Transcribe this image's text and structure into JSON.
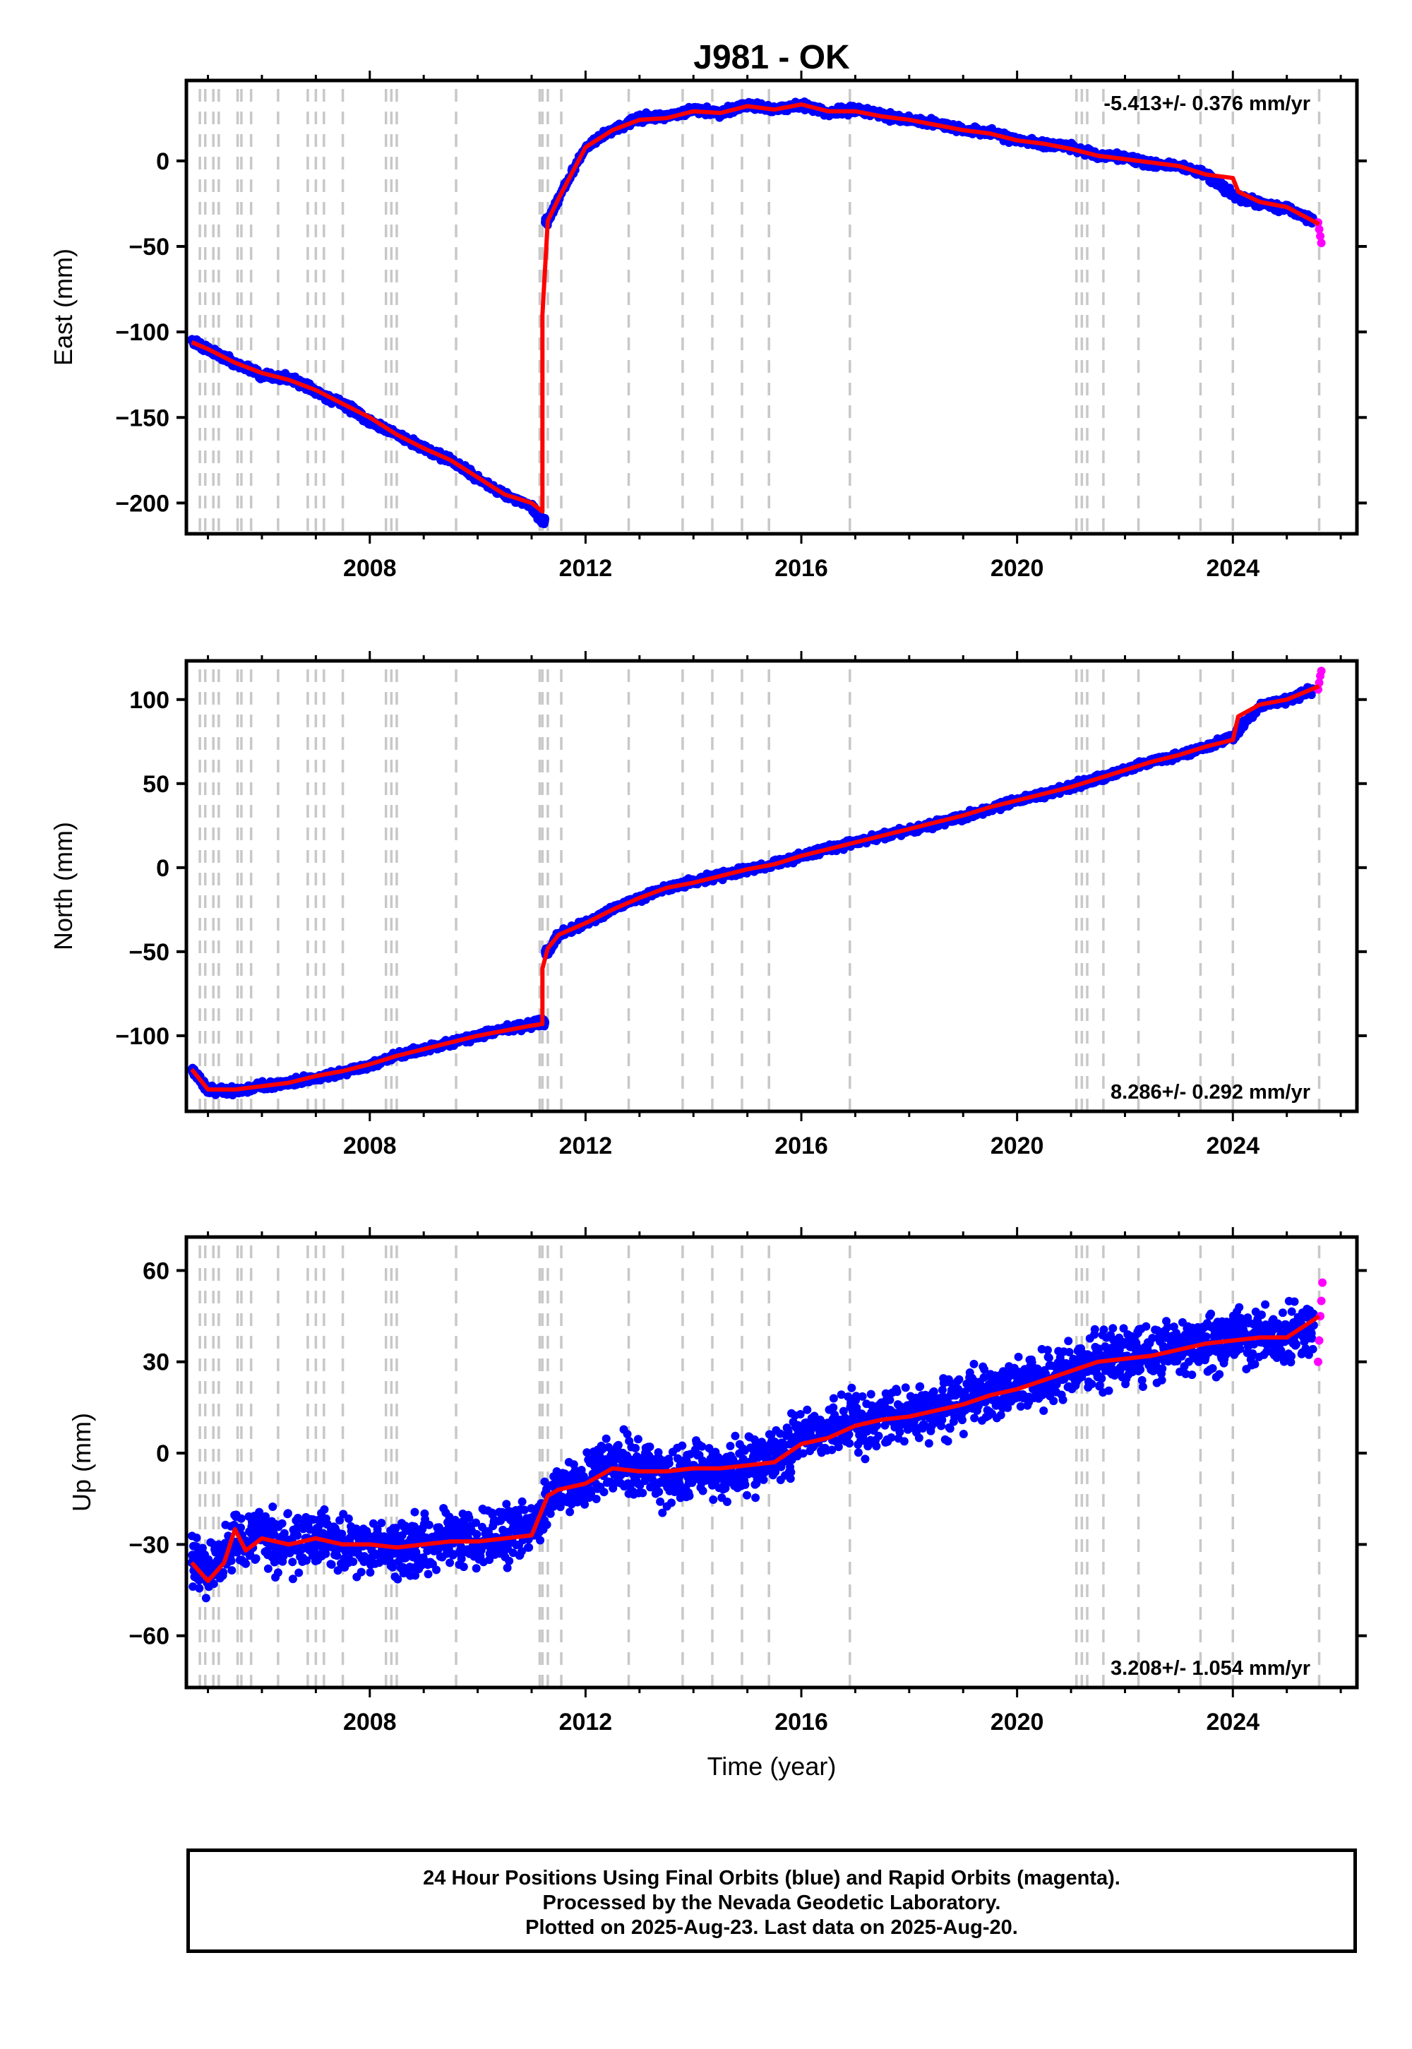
{
  "chart_data": [
    {
      "type": "scatter",
      "title": "J981 - OK",
      "ylabel": "East (mm)",
      "xlim": [
        2004.6,
        2026.3
      ],
      "ylim": [
        -218,
        47
      ],
      "yticks": [
        -200,
        -150,
        -100,
        -50,
        0
      ],
      "xticks": [
        2008,
        2012,
        2016,
        2020,
        2024
      ],
      "rate_label": "-5.413+/- 0.376 mm/yr",
      "rate_position": "top-right",
      "grid": false,
      "series": [
        {
          "name": "Final Orbits",
          "color": "#0000ff",
          "kind": "points",
          "x": [
            2004.7,
            2005.0,
            2005.5,
            2006.0,
            2006.5,
            2007.0,
            2007.5,
            2008.0,
            2008.5,
            2009.0,
            2009.5,
            2010.0,
            2010.5,
            2011.0,
            2011.2,
            2011.3,
            2011.5,
            2012.0,
            2012.5,
            2013.0,
            2013.5,
            2014.0,
            2014.5,
            2015.0,
            2015.5,
            2016.0,
            2016.5,
            2017.0,
            2017.5,
            2018.0,
            2018.5,
            2019.0,
            2019.5,
            2020.0,
            2020.5,
            2021.0,
            2021.5,
            2022.0,
            2022.5,
            2023.0,
            2023.5,
            2024.0,
            2024.5,
            2025.0,
            2025.5
          ],
          "y": [
            -105,
            -110,
            -118,
            -125,
            -127,
            -135,
            -142,
            -152,
            -160,
            -168,
            -175,
            -186,
            -195,
            -202,
            -210,
            -35,
            -22,
            8,
            18,
            25,
            26,
            30,
            28,
            33,
            30,
            33,
            28,
            30,
            27,
            24,
            22,
            18,
            17,
            12,
            10,
            8,
            3,
            2,
            -2,
            -3,
            -8,
            -20,
            -25,
            -28,
            -35
          ]
        },
        {
          "name": "Rapid Orbits",
          "color": "#ff00ff",
          "kind": "points",
          "x": [
            2025.58,
            2025.6,
            2025.62,
            2025.64
          ],
          "y": [
            -36,
            -40,
            -44,
            -48
          ]
        },
        {
          "name": "Model",
          "color": "#ff0000",
          "kind": "line",
          "x": [
            2004.7,
            2005.0,
            2005.5,
            2006.0,
            2006.5,
            2007.0,
            2007.5,
            2008.0,
            2008.5,
            2009.0,
            2009.5,
            2010.0,
            2010.5,
            2011.0,
            2011.2,
            2011.2,
            2011.3,
            2011.5,
            2012.0,
            2012.5,
            2013.0,
            2013.5,
            2014.0,
            2014.5,
            2015.0,
            2015.5,
            2016.0,
            2016.5,
            2017.0,
            2017.5,
            2018.0,
            2018.5,
            2019.0,
            2019.5,
            2020.0,
            2020.5,
            2021.0,
            2021.5,
            2022.0,
            2022.5,
            2023.0,
            2023.5,
            2024.0,
            2024.1,
            2024.5,
            2025.0,
            2025.6
          ],
          "y": [
            -106,
            -110,
            -118,
            -124,
            -128,
            -134,
            -142,
            -150,
            -160,
            -168,
            -175,
            -185,
            -195,
            -200,
            -205,
            -90,
            -35,
            -22,
            8,
            18,
            24,
            25,
            29,
            28,
            32,
            30,
            33,
            29,
            29,
            26,
            24,
            21,
            18,
            16,
            12,
            10,
            7,
            3,
            1,
            -1,
            -3,
            -8,
            -10,
            -18,
            -24,
            -27,
            -37
          ]
        }
      ]
    },
    {
      "type": "scatter",
      "ylabel": "North (mm)",
      "xlim": [
        2004.6,
        2026.3
      ],
      "ylim": [
        -145,
        123
      ],
      "yticks": [
        -100,
        -50,
        0,
        50,
        100
      ],
      "xticks": [
        2008,
        2012,
        2016,
        2020,
        2024
      ],
      "rate_label": "8.286+/- 0.292 mm/yr",
      "rate_position": "bottom-right",
      "grid": false,
      "series": [
        {
          "name": "Final Orbits",
          "color": "#0000ff",
          "kind": "points",
          "x": [
            2004.7,
            2005.0,
            2005.5,
            2006.0,
            2006.5,
            2007.0,
            2007.5,
            2008.0,
            2008.5,
            2009.0,
            2009.5,
            2010.0,
            2010.5,
            2011.0,
            2011.2,
            2011.3,
            2011.5,
            2012.0,
            2012.5,
            2013.0,
            2013.5,
            2014.0,
            2014.5,
            2015.0,
            2015.5,
            2016.0,
            2016.5,
            2017.0,
            2017.5,
            2018.0,
            2018.5,
            2019.0,
            2019.5,
            2020.0,
            2020.5,
            2021.0,
            2021.5,
            2022.0,
            2022.5,
            2023.0,
            2023.5,
            2024.0,
            2024.5,
            2025.0,
            2025.5
          ],
          "y": [
            -120,
            -132,
            -133,
            -130,
            -128,
            -125,
            -122,
            -118,
            -112,
            -108,
            -104,
            -100,
            -96,
            -93,
            -92,
            -50,
            -40,
            -33,
            -25,
            -18,
            -12,
            -8,
            -5,
            -1,
            2,
            7,
            11,
            15,
            19,
            22,
            26,
            30,
            35,
            40,
            44,
            48,
            53,
            58,
            63,
            67,
            72,
            78,
            96,
            100,
            106
          ]
        },
        {
          "name": "Rapid Orbits",
          "color": "#ff00ff",
          "kind": "points",
          "x": [
            2025.58,
            2025.6,
            2025.62,
            2025.64
          ],
          "y": [
            106,
            110,
            114,
            117
          ]
        },
        {
          "name": "Model",
          "color": "#ff0000",
          "kind": "line",
          "x": [
            2004.7,
            2005.0,
            2005.5,
            2006.0,
            2006.5,
            2007.0,
            2007.5,
            2008.0,
            2008.5,
            2009.0,
            2009.5,
            2010.0,
            2010.5,
            2011.0,
            2011.2,
            2011.2,
            2011.3,
            2011.5,
            2012.0,
            2012.5,
            2013.0,
            2013.5,
            2014.0,
            2014.5,
            2015.0,
            2015.5,
            2016.0,
            2016.5,
            2017.0,
            2017.5,
            2018.0,
            2018.5,
            2019.0,
            2019.5,
            2020.0,
            2020.5,
            2021.0,
            2021.5,
            2022.0,
            2022.5,
            2023.0,
            2023.5,
            2024.0,
            2024.1,
            2024.5,
            2025.0,
            2025.6
          ],
          "y": [
            -120,
            -132,
            -132,
            -130,
            -128,
            -124,
            -121,
            -117,
            -112,
            -108,
            -104,
            -100,
            -97,
            -94,
            -93,
            -60,
            -48,
            -40,
            -33,
            -25,
            -18,
            -12,
            -9,
            -5,
            -1,
            2,
            7,
            11,
            15,
            19,
            23,
            27,
            31,
            36,
            40,
            44,
            48,
            53,
            58,
            63,
            67,
            72,
            76,
            90,
            97,
            100,
            108
          ]
        }
      ]
    },
    {
      "type": "scatter",
      "ylabel": "Up (mm)",
      "xlabel": "Time (year)",
      "xlim": [
        2004.6,
        2026.3
      ],
      "ylim": [
        -77,
        71
      ],
      "yticks": [
        -60,
        -30,
        0,
        30,
        60
      ],
      "xticks": [
        2008,
        2012,
        2016,
        2020,
        2024
      ],
      "rate_label": "3.208+/- 1.054 mm/yr",
      "rate_position": "bottom-right",
      "grid": false,
      "series": [
        {
          "name": "Final Orbits",
          "color": "#0000ff",
          "kind": "points",
          "x": [
            2004.7,
            2005.0,
            2005.5,
            2006.0,
            2006.5,
            2007.0,
            2007.5,
            2008.0,
            2008.5,
            2009.0,
            2009.5,
            2010.0,
            2010.5,
            2011.0,
            2011.5,
            2012.0,
            2012.5,
            2013.0,
            2013.5,
            2014.0,
            2014.5,
            2015.0,
            2015.5,
            2016.0,
            2016.5,
            2017.0,
            2017.5,
            2018.0,
            2018.5,
            2019.0,
            2019.5,
            2020.0,
            2020.5,
            2021.0,
            2021.5,
            2022.0,
            2022.5,
            2023.0,
            2023.5,
            2024.0,
            2024.5,
            2025.0,
            2025.5
          ],
          "y": [
            -36,
            -40,
            -30,
            -28,
            -30,
            -28,
            -31,
            -30,
            -32,
            -30,
            -28,
            -29,
            -27,
            -25,
            -12,
            -10,
            -3,
            -6,
            -8,
            -5,
            -6,
            -4,
            -2,
            5,
            6,
            10,
            12,
            12,
            14,
            17,
            20,
            22,
            24,
            28,
            30,
            31,
            32,
            34,
            36,
            38,
            38,
            38,
            42
          ]
        },
        {
          "name": "Rapid Orbits",
          "color": "#ff00ff",
          "kind": "points",
          "x": [
            2025.58,
            2025.6,
            2025.62,
            2025.64,
            2025.66
          ],
          "y": [
            30,
            37,
            45,
            50,
            56
          ]
        },
        {
          "name": "Model",
          "color": "#ff0000",
          "kind": "line",
          "x": [
            2004.7,
            2005.0,
            2005.3,
            2005.5,
            2005.7,
            2006.0,
            2006.5,
            2007.0,
            2007.5,
            2008.0,
            2008.5,
            2009.0,
            2009.5,
            2010.0,
            2010.5,
            2011.0,
            2011.3,
            2011.5,
            2012.0,
            2012.5,
            2013.0,
            2013.5,
            2014.0,
            2014.5,
            2015.0,
            2015.5,
            2016.0,
            2016.5,
            2017.0,
            2017.5,
            2018.0,
            2018.5,
            2019.0,
            2019.5,
            2020.0,
            2020.5,
            2021.0,
            2021.5,
            2022.0,
            2022.5,
            2023.0,
            2023.5,
            2024.0,
            2024.5,
            2025.0,
            2025.6
          ],
          "y": [
            -36,
            -42,
            -36,
            -25,
            -32,
            -28,
            -30,
            -28,
            -30,
            -30,
            -31,
            -30,
            -29,
            -29,
            -28,
            -27,
            -14,
            -12,
            -10,
            -5,
            -6,
            -6,
            -5,
            -5,
            -4,
            -3,
            3,
            5,
            9,
            11,
            12,
            14,
            16,
            19,
            21,
            24,
            27,
            30,
            31,
            32,
            34,
            36,
            37,
            38,
            38,
            45
          ]
        }
      ]
    }
  ],
  "event_lines_x": [
    2004.85,
    2004.95,
    2005.1,
    2005.2,
    2005.55,
    2005.62,
    2005.8,
    2006.3,
    2006.85,
    2007.0,
    2007.15,
    2007.5,
    2008.3,
    2008.4,
    2008.5,
    2009.6,
    2011.15,
    2011.2,
    2011.3,
    2011.55,
    2012.8,
    2013.8,
    2014.35,
    2014.9,
    2015.4,
    2016.9,
    2021.1,
    2021.2,
    2021.3,
    2021.6,
    2022.25,
    2023.4,
    2024.0,
    2025.6
  ],
  "footer": {
    "line1": "24 Hour Positions Using Final Orbits (blue) and Rapid Orbits (magenta).",
    "line2": "Processed by the Nevada Geodetic Laboratory.",
    "line3": "Plotted on 2025-Aug-23. Last data on 2025-Aug-20."
  },
  "colors": {
    "final": "#0000ff",
    "rapid": "#ff00ff",
    "model": "#ff0000",
    "event": "#c8c8c8",
    "frame": "#000000"
  }
}
